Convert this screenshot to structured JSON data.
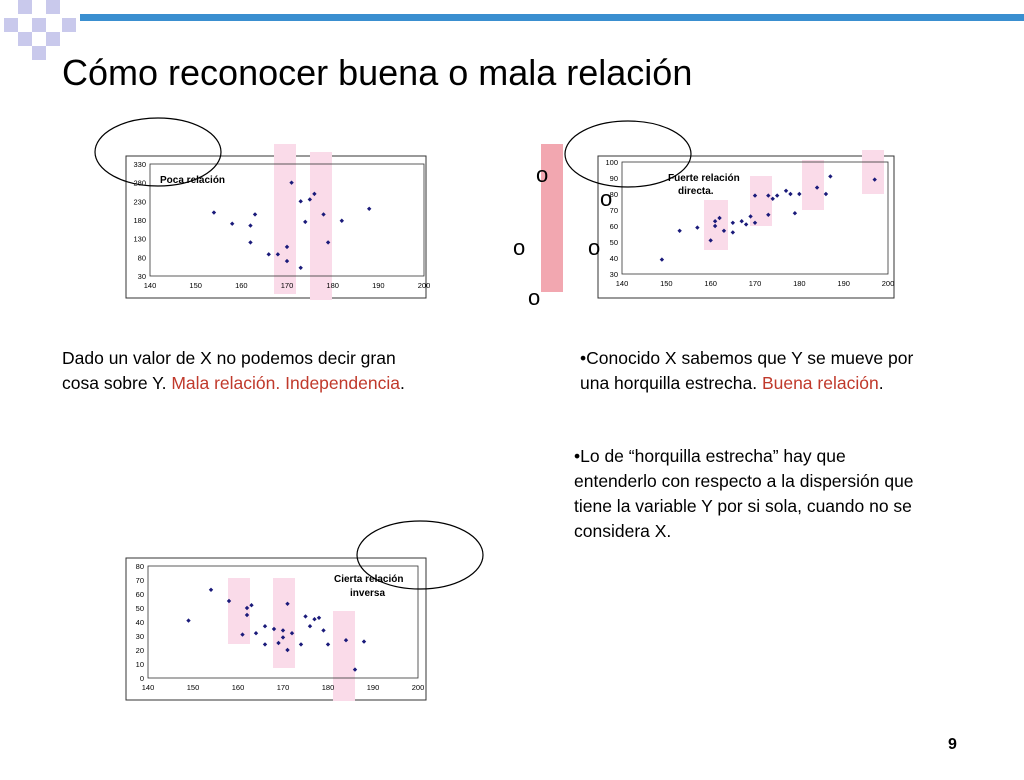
{
  "slide": {
    "title": "Cómo reconocer buena o mala relación",
    "page_number": "9",
    "accent_color": "#3a8fd0",
    "highlight_color": "#fadbe9"
  },
  "left_text": {
    "line1": "Dado un valor de X no podemos decir gran",
    "line2": "cosa sobre Y.",
    "red_part": "Mala relación. Independencia",
    "end": "."
  },
  "right_text": {
    "line1": "•Conocido  X sabemos que Y se mueve por",
    "line2": "una horquilla estrecha.",
    "red_part": "Buena relación",
    "end": "."
  },
  "note_text": {
    "line1": "•Lo de “horquilla estrecha” hay que",
    "line2": "entenderlo con respecto a la dispersión que",
    "line3": "tiene la variable Y por si sola, cuando no se",
    "line4": "considera X."
  },
  "o_markers": [
    "o",
    "o",
    "o",
    "o",
    "o"
  ],
  "chart_data": [
    {
      "type": "scatter",
      "title": "Poca relación",
      "xlim": [
        140,
        200
      ],
      "ylim": [
        30,
        330
      ],
      "xticks": [
        "140",
        "150",
        "160",
        "170",
        "180",
        "190",
        "200"
      ],
      "yticks": [
        "30",
        "80",
        "130",
        "180",
        "230",
        "280",
        "330"
      ],
      "x": [
        154,
        158,
        162,
        162,
        163,
        166,
        168,
        170,
        171,
        170,
        173,
        173,
        174,
        175,
        176,
        178,
        179,
        182,
        188
      ],
      "y": [
        200,
        170,
        120,
        165,
        195,
        88,
        88,
        108,
        280,
        70,
        52,
        230,
        175,
        235,
        250,
        195,
        120,
        178,
        210
      ]
    },
    {
      "type": "scatter",
      "title": "Fuerte relación directa.",
      "xlim": [
        140,
        200
      ],
      "ylim": [
        30,
        100
      ],
      "xticks": [
        "140",
        "150",
        "160",
        "170",
        "180",
        "190",
        "200"
      ],
      "yticks": [
        "30",
        "40",
        "50",
        "60",
        "70",
        "80",
        "90",
        "100"
      ],
      "x": [
        149,
        153,
        157,
        160,
        161,
        161,
        162,
        163,
        165,
        165,
        167,
        168,
        169,
        170,
        170,
        173,
        173,
        174,
        175,
        177,
        178,
        179,
        180,
        184,
        186,
        187,
        197
      ],
      "y": [
        39,
        57,
        59,
        51,
        60,
        63,
        65,
        57,
        56,
        62,
        63,
        61,
        66,
        62,
        79,
        67,
        79,
        77,
        79,
        82,
        80,
        68,
        80,
        84,
        80,
        91,
        89
      ]
    },
    {
      "type": "scatter",
      "title": "Cierta relación inversa",
      "xlim": [
        140,
        200
      ],
      "ylim": [
        0,
        80
      ],
      "xticks": [
        "140",
        "150",
        "160",
        "170",
        "180",
        "190",
        "200"
      ],
      "yticks": [
        "0",
        "10",
        "20",
        "30",
        "40",
        "50",
        "60",
        "70",
        "80"
      ],
      "x": [
        149,
        154,
        158,
        161,
        162,
        162,
        163,
        164,
        166,
        166,
        168,
        169,
        170,
        170,
        171,
        171,
        172,
        174,
        175,
        176,
        177,
        178,
        179,
        180,
        184,
        186,
        188
      ],
      "y": [
        41,
        63,
        55,
        31,
        50,
        45,
        52,
        32,
        37,
        24,
        35,
        25,
        34,
        29,
        53,
        20,
        32,
        24,
        44,
        37,
        42,
        43,
        34,
        24,
        27,
        6,
        26
      ]
    }
  ]
}
